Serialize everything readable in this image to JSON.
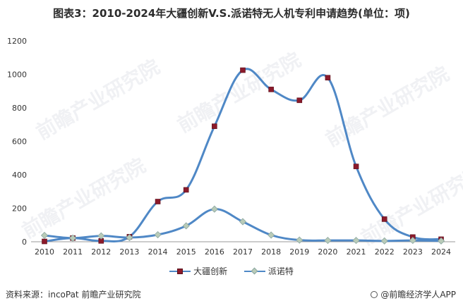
{
  "title": "图表3：2010-2024年大疆创新V.S.派诺特无人机专利申请趋势(单位：项)",
  "footer": {
    "source": "资料来源：incoPat 前瞻产业研究院",
    "brand": "@前瞻经济学人APP"
  },
  "watermark": "前瞻产业研究院",
  "colors": {
    "line": "#4f88c6",
    "dji_marker": "#8b1a2b",
    "parrot_marker": "#b9cbb8"
  },
  "chart_data": {
    "type": "line",
    "title": "图表3：2010-2024年大疆创新V.S.派诺特无人机专利申请趋势(单位：项)",
    "categories": [
      "2010",
      "2011",
      "2012",
      "2013",
      "2014",
      "2015",
      "2016",
      "2017",
      "2018",
      "2019",
      "2020",
      "2021",
      "2022",
      "2023",
      "2024"
    ],
    "series": [
      {
        "name": "大疆创新",
        "marker": "square",
        "values": [
          2,
          22,
          5,
          30,
          240,
          310,
          690,
          1025,
          910,
          845,
          980,
          450,
          135,
          28,
          15
        ]
      },
      {
        "name": "派诺特",
        "marker": "diamond",
        "values": [
          38,
          22,
          35,
          25,
          42,
          95,
          195,
          120,
          40,
          10,
          8,
          8,
          5,
          8,
          5
        ]
      }
    ],
    "ylim": [
      0,
      1200
    ],
    "yticks": [
      "0",
      "200",
      "400",
      "600",
      "800",
      "1000",
      "1200"
    ],
    "grid": false,
    "legend": "bottom"
  }
}
